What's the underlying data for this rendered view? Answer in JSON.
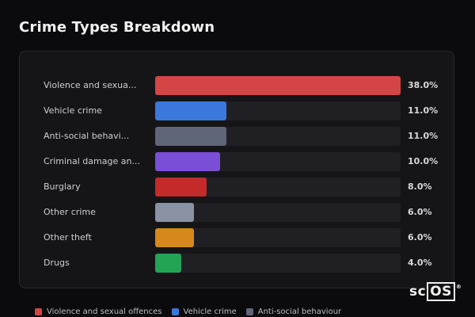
{
  "chart_data": {
    "type": "bar",
    "orientation": "horizontal",
    "title": "Crime Types Breakdown",
    "xlim": [
      0,
      38
    ],
    "categories": [
      "Violence and sexua...",
      "Vehicle crime",
      "Anti-social behavi...",
      "Criminal damage an...",
      "Burglary",
      "Other crime",
      "Other theft",
      "Drugs"
    ],
    "values": [
      38.0,
      11.0,
      11.0,
      10.0,
      8.0,
      6.0,
      6.0,
      4.0
    ],
    "value_labels": [
      "38.0%",
      "11.0%",
      "11.0%",
      "10.0%",
      "8.0%",
      "6.0%",
      "6.0%",
      "4.0%"
    ],
    "colors": [
      "#d64545",
      "#3b78db",
      "#5f6678",
      "#7a4fd6",
      "#c42a2a",
      "#8a93a3",
      "#d6891a",
      "#23a455"
    ],
    "legend": [
      {
        "label": "Violence and sexual offences",
        "color": "#d64545"
      },
      {
        "label": "Vehicle crime",
        "color": "#3b78db"
      },
      {
        "label": "Anti-social behaviour",
        "color": "#5f6678"
      }
    ],
    "legend_placement": "bottom",
    "grid": false
  },
  "logo": {
    "prefix": "sc",
    "boxed": "OS",
    "mark": "®"
  }
}
